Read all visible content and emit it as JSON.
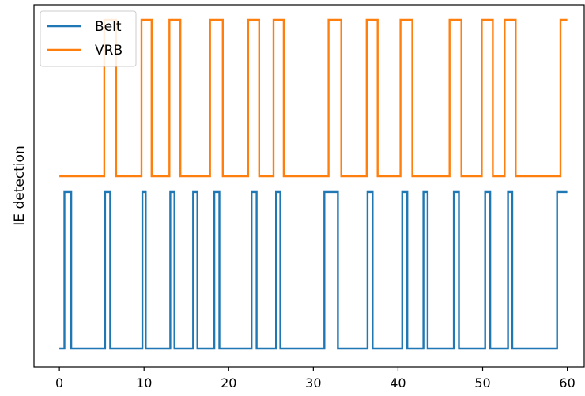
{
  "chart_data": {
    "type": "line",
    "title": "",
    "xlabel": "",
    "ylabel": "IE detection",
    "xlim": [
      -3,
      62
    ],
    "ylim": [
      -0.1,
      2.1
    ],
    "xticks": [
      0,
      10,
      20,
      30,
      40,
      50,
      60
    ],
    "yticks_shown": false,
    "legend_position": "top-left",
    "series": [
      {
        "name": "Belt",
        "color": "#1f77b4",
        "low": 0,
        "high": 1,
        "step_x": [
          0,
          0.6,
          1.4,
          5.4,
          6.0,
          9.8,
          10.2,
          13.1,
          13.6,
          15.8,
          16.3,
          18.3,
          18.9,
          22.7,
          23.3,
          25.6,
          26.1,
          31.3,
          32.9,
          36.4,
          37.0,
          40.5,
          41.1,
          43.0,
          43.5,
          46.6,
          47.2,
          50.3,
          50.9,
          53.0,
          53.5,
          58.8,
          60
        ]
      },
      {
        "name": "VRB",
        "color": "#ff7f0e",
        "low": 1.1,
        "high": 2.1,
        "step_x": [
          0,
          5.3,
          6.7,
          9.7,
          10.9,
          13.0,
          14.3,
          17.8,
          19.3,
          22.3,
          23.6,
          25.3,
          26.5,
          31.8,
          33.3,
          36.3,
          37.6,
          40.3,
          41.7,
          46.1,
          47.5,
          49.9,
          51.2,
          52.6,
          53.9,
          59.2,
          60
        ]
      }
    ]
  }
}
